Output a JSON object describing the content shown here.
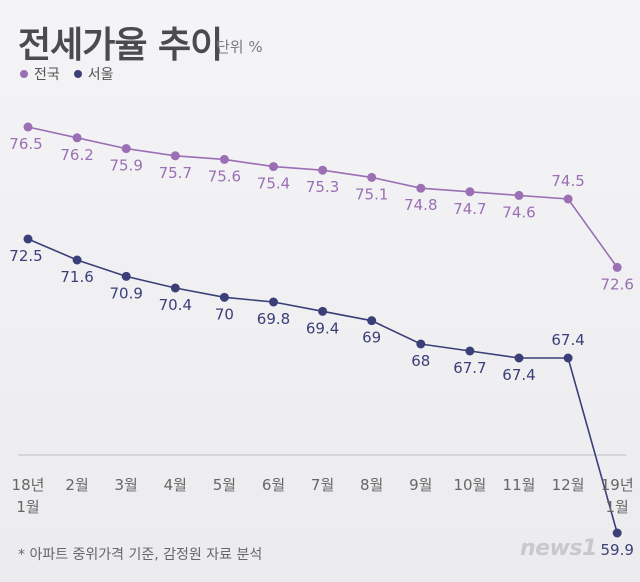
{
  "header": {
    "title": "전세가율 추이",
    "unit": "단위 %"
  },
  "legend": [
    {
      "label": "전국",
      "color": "#9a6fb4"
    },
    {
      "label": "서울",
      "color": "#3a3f78"
    }
  ],
  "footnote": "* 아파트 중위가격 기준, 감정원 자료 분석",
  "logo_text": "news1",
  "chart_data": {
    "type": "line",
    "categories": [
      [
        "18년",
        "1월"
      ],
      [
        "2월"
      ],
      [
        "3월"
      ],
      [
        "4월"
      ],
      [
        "5월"
      ],
      [
        "6월"
      ],
      [
        "7월"
      ],
      [
        "8월"
      ],
      [
        "9월"
      ],
      [
        "10월"
      ],
      [
        "11월"
      ],
      [
        "12월"
      ],
      [
        "19년",
        "1월"
      ]
    ],
    "series": [
      {
        "name": "전국",
        "color": "#9a6fb4",
        "values": [
          76.5,
          76.2,
          75.9,
          75.7,
          75.6,
          75.4,
          75.3,
          75.1,
          74.8,
          74.7,
          74.6,
          74.5,
          72.6
        ],
        "labels": [
          "76.5",
          "76.2",
          "75.9",
          "75.7",
          "75.6",
          "75.4",
          "75.3",
          "75.1",
          "74.8",
          "74.7",
          "74.6",
          "74.5",
          "72.6"
        ]
      },
      {
        "name": "서울",
        "color": "#3a3f78",
        "values": [
          72.5,
          71.6,
          70.9,
          70.4,
          70.0,
          69.8,
          69.4,
          69.0,
          68.0,
          67.7,
          67.4,
          67.4,
          59.9
        ],
        "labels": [
          "72.5",
          "71.6",
          "70.9",
          "70.4",
          "70",
          "69.8",
          "69.4",
          "69",
          "68",
          "67.7",
          "67.4",
          "67.4",
          "59.9"
        ]
      }
    ],
    "grid": false,
    "legend_position": "top-left"
  }
}
